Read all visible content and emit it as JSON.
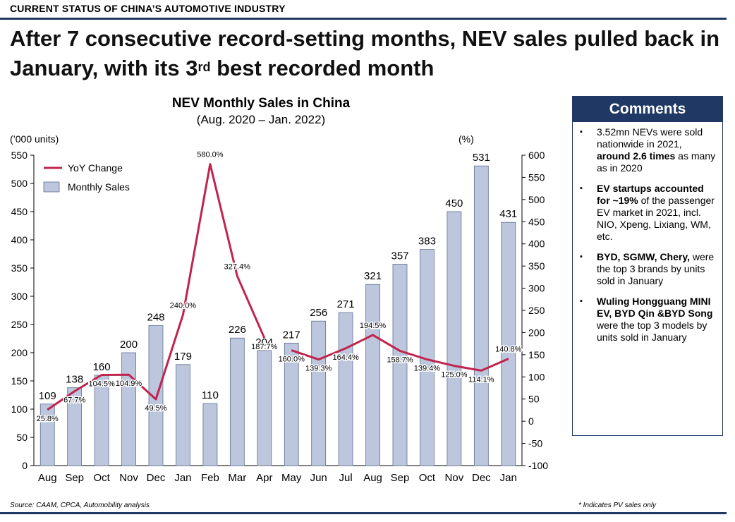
{
  "header": {
    "section_label": "CURRENT STATUS OF CHINA’S AUTOMOTIVE INDUSTRY"
  },
  "headline": {
    "before_sup": "After 7 consecutive record-setting months, NEV sales pulled back in January, with its 3",
    "sup": "rd",
    "after_sup": " best recorded month"
  },
  "colors": {
    "navy": "#1f3864",
    "bar_fill": "#bcc6dc",
    "bar_stroke": "#5f6f93",
    "line": "#c0244e"
  },
  "chart_data": {
    "type": "bar",
    "title": "NEV Monthly Sales in China",
    "subtitle": "(Aug. 2020 – Jan. 2022)",
    "left_unit": "(’000 units)",
    "right_unit": "(%)",
    "categories": [
      "Aug",
      "Sep",
      "Oct",
      "Nov",
      "Dec",
      "Jan",
      "Feb",
      "Mar",
      "Apr",
      "May",
      "Jun",
      "Jul",
      "Aug",
      "Sep",
      "Oct",
      "Nov",
      "Dec",
      "Jan"
    ],
    "series": [
      {
        "name": "Monthly Sales",
        "kind": "bar",
        "axis": "left",
        "values": [
          109,
          138,
          160,
          200,
          248,
          179,
          110,
          226,
          204,
          217,
          256,
          271,
          321,
          357,
          383,
          450,
          531,
          431
        ],
        "labels": [
          "109",
          "138",
          "160",
          "200",
          "248",
          "179",
          "110",
          "226",
          "204",
          "217",
          "256",
          "271",
          "321",
          "357",
          "383",
          "450",
          "531",
          "431"
        ]
      },
      {
        "name": "YoY Change",
        "kind": "line",
        "axis": "right",
        "values": [
          25.8,
          67.7,
          104.5,
          104.9,
          49.5,
          240.0,
          580.0,
          327.4,
          187.7,
          160.0,
          139.3,
          164.4,
          194.5,
          158.7,
          139.4,
          125.0,
          114.1,
          140.8
        ],
        "labels": [
          "25.8%",
          "67.7%",
          "104.5%",
          "104.9%",
          "49.5%",
          "240.0%",
          "580.0%",
          "327.4%",
          "187.7%",
          "160.0%",
          "139.3%",
          "164.4%",
          "194.5%",
          "158.7%",
          "139.4%",
          "125.0%",
          "114.1%",
          "140.8%"
        ]
      }
    ],
    "ylim_left": [
      0,
      550
    ],
    "yticks_left": [
      0,
      50,
      100,
      150,
      200,
      250,
      300,
      350,
      400,
      450,
      500,
      550
    ],
    "ylim_right": [
      -100,
      600
    ],
    "yticks_right": [
      -100,
      -50,
      0,
      50,
      100,
      150,
      200,
      250,
      300,
      350,
      400,
      450,
      500,
      550,
      600
    ],
    "legend_position": "top-left",
    "grid": false
  },
  "comments": {
    "title": "Comments",
    "items": [
      {
        "segments": [
          {
            "text": "3.52mn NEVs were sold nationwide in 2021, ",
            "bold": false
          },
          {
            "text": "around 2.6 times",
            "bold": true
          },
          {
            "text": " as many as in 2020",
            "bold": false
          }
        ]
      },
      {
        "segments": [
          {
            "text": "EV startups accounted for ~19%",
            "bold": true
          },
          {
            "text": " of the passenger EV market in 2021, incl. NIO, Xpeng, Lixiang, WM, etc.",
            "bold": false
          }
        ]
      },
      {
        "segments": [
          {
            "text": "BYD, SGMW, Chery,",
            "bold": true
          },
          {
            "text": " were the top 3 brands by units sold in January",
            "bold": false
          }
        ]
      },
      {
        "segments": [
          {
            "text": "Wuling Hongguang MINI EV, BYD Qin &BYD Song",
            "bold": true
          },
          {
            "text": " were the top 3 models by units sold in January",
            "bold": false
          }
        ]
      }
    ]
  },
  "footer": {
    "source": "Source: CAAM, CPCA, Automobility analysis",
    "note": "* Indicates PV sales only"
  }
}
